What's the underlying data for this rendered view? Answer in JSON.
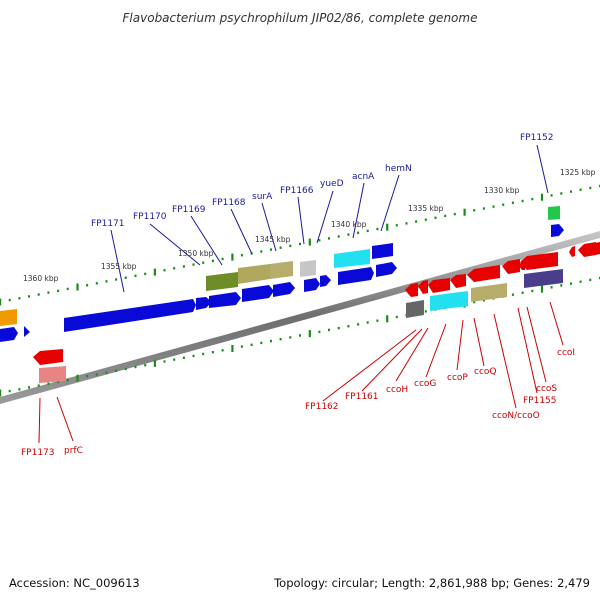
{
  "title": "Flavobacterium psychrophilum JIP02/86, complete genome",
  "accession": "Accession: NC_009613",
  "topology": "Topology: circular; Length: 2,861,988 bp; Genes: 2,479",
  "colors": {
    "backbone": "#8a8a8a",
    "tick": "#1a8a1a",
    "forward_label": "#1a1aa0",
    "reverse_label": "#cc0000",
    "kbp_label": "#333333"
  },
  "kbp_labels": [
    "1360 kbp",
    "1355 kbp",
    "1350 kbp",
    "1345 kbp",
    "1340 kbp",
    "1335 kbp",
    "1330 kbp",
    "1325 kbp"
  ],
  "forward_gene_labels": [
    "FP1171",
    "FP1170",
    "FP1169",
    "FP1168",
    "surA",
    "FP1166",
    "yueD",
    "acnA",
    "hemN",
    "FP1152"
  ],
  "reverse_gene_labels": [
    "FP1173",
    "prfC",
    "FP1162",
    "FP1161",
    "ccoH",
    "ccoG",
    "ccoP",
    "ccoQ",
    "ccoN/ccoO",
    "FP1155",
    "ccoS",
    "ccoI"
  ]
}
